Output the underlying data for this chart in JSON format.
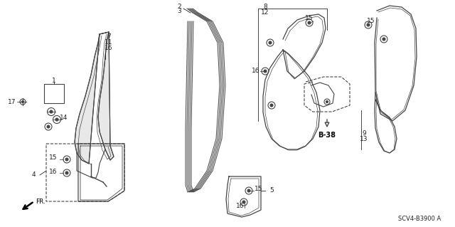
{
  "bg_color": "#ffffff",
  "diagram_code": "SCV4-B3900 A",
  "line_color": "#444444",
  "text_color": "#222222"
}
